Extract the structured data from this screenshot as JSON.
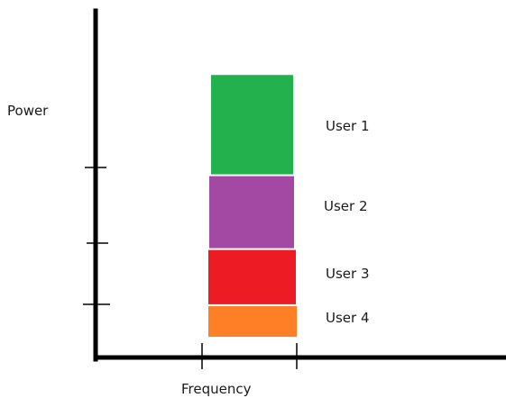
{
  "axes": {
    "y_label": "Power",
    "x_label": "Frequency",
    "y_tick_count": 3,
    "x_tick_count": 2
  },
  "users": [
    {
      "label": "User 1",
      "color": "#22b14c",
      "power_share": 1.37
    },
    {
      "label": "User 2",
      "color": "#a349a4",
      "power_share": 1.0
    },
    {
      "label": "User 3",
      "color": "#ed1c24",
      "power_share": 0.76
    },
    {
      "label": "User 4",
      "color": "#ff7f27",
      "power_share": 0.44
    }
  ]
}
